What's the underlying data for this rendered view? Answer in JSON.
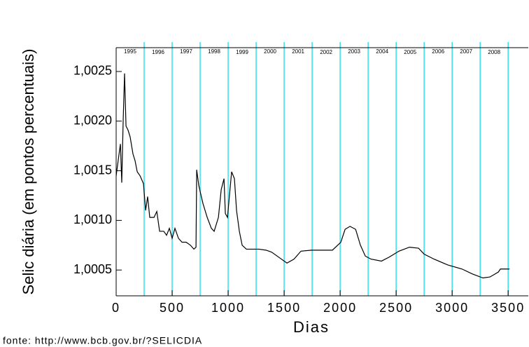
{
  "chart_data": {
    "type": "line",
    "y_label": "Selic diária (em pontos percentuais)",
    "x_label": "Dias",
    "source": "fonte: http://www.bcb.gov.br/?SELICDIA",
    "xlim": [
      0,
      3680
    ],
    "ylim": [
      1.00024,
      1.00274
    ],
    "xticks": [
      0,
      500,
      1000,
      1500,
      2000,
      2500,
      3000,
      3500
    ],
    "yticks": [
      {
        "value": 1.0005,
        "label": "1,0005"
      },
      {
        "value": 1.001,
        "label": "1,0010"
      },
      {
        "value": 1.0015,
        "label": "1,0015"
      },
      {
        "value": 1.002,
        "label": "1,0020"
      },
      {
        "value": 1.0025,
        "label": "1,0025"
      }
    ],
    "year_lines": [
      250,
      500,
      750,
      1000,
      1250,
      1500,
      1750,
      2000,
      2250,
      2500,
      2750,
      3000,
      3250,
      3500
    ],
    "year_line_color": "#33e0ee",
    "years": [
      "1995",
      "1996",
      "1997",
      "1998",
      "1999",
      "2000",
      "2001",
      "2002",
      "2003",
      "2004",
      "2005",
      "2006",
      "2007",
      "2008"
    ],
    "year_positions": [
      125,
      375,
      625,
      875,
      1125,
      1375,
      1625,
      1875,
      2125,
      2375,
      2625,
      2875,
      3125,
      3375
    ],
    "series": [
      {
        "color": "#000000",
        "x": [
          0,
          38,
          50,
          63,
          75,
          88,
          106,
          125,
          150,
          169,
          188,
          213,
          244,
          263,
          281,
          300,
          338,
          363,
          388,
          425,
          450,
          475,
          500,
          525,
          556,
          588,
          625,
          663,
          694,
          713,
          719,
          738,
          775,
          813,
          850,
          875,
          913,
          938,
          963,
          975,
          994,
          1031,
          1056,
          1075,
          1100,
          1125,
          1163,
          1275,
          1338,
          1388,
          1463,
          1525,
          1588,
          1650,
          1744,
          1838,
          1931,
          2006,
          2044,
          2088,
          2138,
          2181,
          2225,
          2275,
          2369,
          2438,
          2525,
          2619,
          2700,
          2750,
          2838,
          2963,
          3088,
          3181,
          3275,
          3338,
          3413,
          3431,
          3513
        ],
        "values": [
          1.00145,
          1.00177,
          1.00138,
          1.00202,
          1.00248,
          1.00195,
          1.00191,
          1.00184,
          1.00167,
          1.0016,
          1.00149,
          1.00145,
          1.00137,
          1.0011,
          1.00124,
          1.00103,
          1.00103,
          1.00109,
          1.00089,
          1.00089,
          1.00085,
          1.00092,
          1.00082,
          1.00092,
          1.00082,
          1.00078,
          1.00078,
          1.00075,
          1.00071,
          1.00073,
          1.00151,
          1.00135,
          1.00117,
          1.00103,
          1.00092,
          1.00089,
          1.00103,
          1.00131,
          1.00142,
          1.00107,
          1.00103,
          1.00149,
          1.00142,
          1.0011,
          1.00089,
          1.00075,
          1.00071,
          1.00071,
          1.0007,
          1.00068,
          1.00062,
          1.00057,
          1.00061,
          1.00069,
          1.0007,
          1.0007,
          1.0007,
          1.00078,
          1.00091,
          1.00094,
          1.00091,
          1.00075,
          1.00064,
          1.00061,
          1.00059,
          1.00063,
          1.00069,
          1.00073,
          1.00072,
          1.00066,
          1.00061,
          1.00055,
          1.00051,
          1.00046,
          1.00042,
          1.00043,
          1.00048,
          1.00051,
          1.00051
        ]
      }
    ]
  }
}
